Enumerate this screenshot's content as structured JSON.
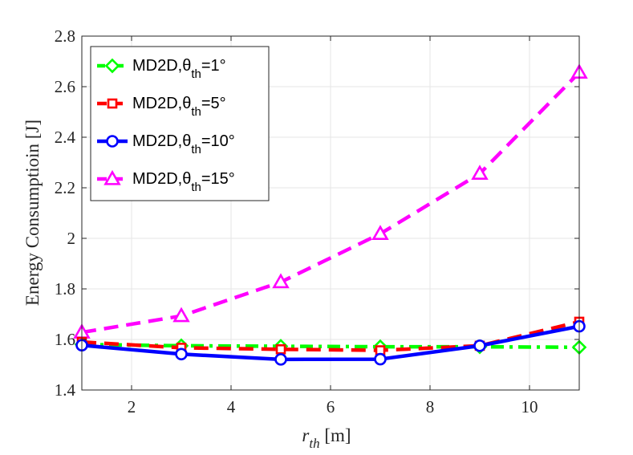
{
  "chart_data": {
    "type": "line",
    "title": "",
    "xlabel": {
      "main": "r",
      "sub": "th",
      "unit": " [m]"
    },
    "ylabel": "Energy Consumptioin [J]",
    "xlim": [
      1,
      11
    ],
    "ylim": [
      1.4,
      2.8
    ],
    "xticks": [
      2,
      4,
      6,
      8,
      10
    ],
    "yticks": [
      1.4,
      1.6,
      1.8,
      2,
      2.2,
      2.4,
      2.6,
      2.8
    ],
    "xtick_labels": [
      "2",
      "4",
      "6",
      "8",
      "10"
    ],
    "ytick_labels": [
      "1.4",
      "1.6",
      "1.8",
      "2",
      "2.2",
      "2.4",
      "2.6",
      "2.8"
    ],
    "grid": true,
    "legend_position": "top-left",
    "x": [
      1,
      3,
      5,
      7,
      9,
      11
    ],
    "series": [
      {
        "name": "MD2D,θth=1°",
        "label_prefix": "MD2D,θ",
        "label_sub": "th",
        "label_suffix": "=1°",
        "color": "#00ff00",
        "dash": "dashdot",
        "marker": "diamond",
        "values": [
          1.58,
          1.575,
          1.573,
          1.571,
          1.571,
          1.569
        ]
      },
      {
        "name": "MD2D,θth=5°",
        "label_prefix": "MD2D,θ",
        "label_sub": "th",
        "label_suffix": "=5°",
        "color": "#ff0000",
        "dash": "dashed",
        "marker": "square",
        "values": [
          1.59,
          1.567,
          1.561,
          1.557,
          1.575,
          1.67
        ]
      },
      {
        "name": "MD2D,θth=10°",
        "label_prefix": "MD2D,θ",
        "label_sub": "th",
        "label_suffix": "=10°",
        "color": "#0000ff",
        "dash": "solid",
        "marker": "circle",
        "values": [
          1.577,
          1.542,
          1.521,
          1.522,
          1.575,
          1.652
        ]
      },
      {
        "name": "MD2D,θth=15°",
        "label_prefix": "MD2D,θ",
        "label_sub": "th",
        "label_suffix": "=15°",
        "color": "#ff00ff",
        "dash": "dashed",
        "marker": "triangle",
        "values": [
          1.628,
          1.693,
          1.827,
          2.018,
          2.256,
          2.656
        ]
      }
    ]
  }
}
